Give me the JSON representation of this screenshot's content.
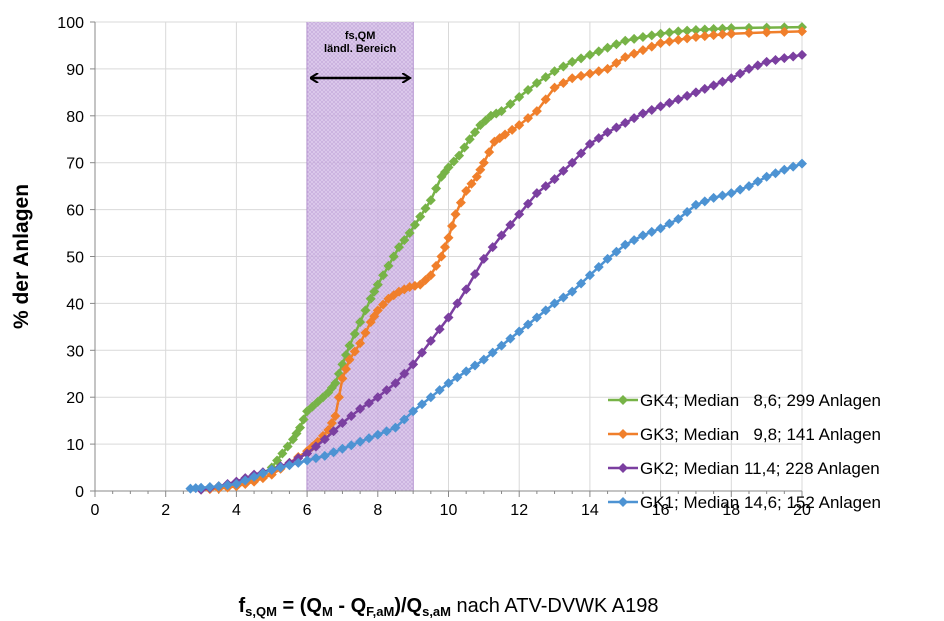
{
  "chart_data": {
    "type": "line",
    "xlim": [
      0,
      20
    ],
    "ylim": [
      0,
      100
    ],
    "x_ticks": [
      "0",
      "2",
      "4",
      "6",
      "8",
      "10",
      "12",
      "14",
      "16",
      "18",
      "20"
    ],
    "y_ticks": [
      "0",
      "10",
      "20",
      "30",
      "40",
      "50",
      "60",
      "70",
      "80",
      "90",
      "100"
    ],
    "grid": true,
    "legend_position": "bottom-right",
    "ylabel": "% der Anlagen",
    "xlabel": {
      "f": "f",
      "f_sub": "s,QM",
      "eq": " = (Q",
      "m_sub": "M",
      "minus": " - Q",
      "fam_sub": "F,aM",
      "div": ")/Q",
      "sam_sub": "s,aM",
      "rest": " nach ATV-DVWK A198"
    },
    "band": {
      "x_range": [
        6,
        9
      ],
      "color": "#cdb4e0",
      "label_line1": "fs,QM",
      "label_line2": "ländl. Bereich"
    },
    "series": [
      {
        "name": "GK4; Median   8,6; 299 Anlagen",
        "color": "#77b347",
        "x": [
          3.0,
          3.5,
          4.0,
          4.5,
          5.0,
          5.3,
          5.6,
          5.8,
          6.0,
          6.3,
          6.6,
          6.8,
          7.0,
          7.2,
          7.5,
          7.8,
          8.0,
          8.3,
          8.6,
          8.9,
          9.2,
          9.5,
          9.8,
          10.0,
          10.3,
          10.6,
          10.9,
          11.2,
          11.5,
          12.0,
          12.5,
          13.0,
          13.5,
          14.0,
          14.5,
          15.0,
          15.5,
          16.0,
          16.5,
          17.0,
          17.5,
          18.0,
          19.0,
          20.0
        ],
        "y": [
          0.5,
          1.0,
          1.5,
          2.5,
          5.0,
          8.0,
          11.0,
          13.5,
          17.0,
          19.0,
          21.0,
          23.0,
          27.0,
          31.0,
          36.0,
          41.0,
          44.0,
          48.0,
          52.0,
          55.0,
          58.5,
          62.0,
          67.0,
          69.0,
          71.5,
          75.0,
          78.0,
          80.0,
          81.0,
          84.0,
          87.0,
          89.5,
          91.5,
          93.0,
          94.5,
          96.0,
          96.8,
          97.5,
          98.0,
          98.3,
          98.5,
          98.7,
          98.8,
          98.9
        ]
      },
      {
        "name": "GK3; Median   9,8; 141 Anlagen",
        "color": "#f07f2b",
        "x": [
          3.0,
          3.5,
          4.0,
          4.5,
          5.0,
          5.5,
          6.0,
          6.3,
          6.6,
          6.8,
          7.0,
          7.2,
          7.5,
          7.8,
          8.0,
          8.3,
          8.6,
          8.9,
          9.2,
          9.5,
          9.8,
          10.0,
          10.2,
          10.5,
          10.8,
          11.0,
          11.3,
          11.6,
          12.0,
          12.5,
          13.0,
          13.5,
          14.0,
          14.5,
          15.0,
          15.5,
          16.0,
          16.5,
          17.0,
          17.5,
          18.0,
          19.0,
          20.0
        ],
        "y": [
          0.3,
          0.5,
          1.0,
          2.0,
          3.5,
          6.0,
          8.5,
          10.5,
          13.0,
          16.0,
          24.0,
          28.0,
          31.5,
          36.0,
          38.5,
          41.0,
          42.5,
          43.5,
          44.0,
          46.0,
          50.0,
          54.0,
          59.0,
          64.0,
          67.0,
          70.0,
          74.5,
          76.0,
          78.0,
          81.0,
          86.0,
          88.0,
          89.0,
          90.0,
          92.5,
          94.0,
          95.5,
          96.2,
          96.8,
          97.2,
          97.5,
          97.8,
          98.0
        ]
      },
      {
        "name": "GK2; Median 11,4; 228 Anlagen",
        "color": "#7b3fa0",
        "x": [
          3.0,
          3.5,
          4.0,
          4.5,
          5.0,
          5.5,
          6.0,
          6.5,
          7.0,
          7.5,
          8.0,
          8.5,
          9.0,
          9.5,
          10.0,
          10.5,
          11.0,
          11.5,
          12.0,
          12.5,
          13.0,
          13.5,
          14.0,
          14.5,
          15.0,
          15.5,
          16.0,
          16.5,
          17.0,
          17.5,
          18.0,
          18.5,
          19.0,
          19.5,
          20.0
        ],
        "y": [
          0.3,
          1.0,
          2.0,
          3.5,
          4.5,
          6.0,
          8.0,
          11.0,
          14.5,
          17.5,
          20.0,
          23.0,
          27.0,
          32.0,
          37.0,
          43.0,
          49.5,
          54.5,
          59.0,
          63.5,
          66.5,
          70.0,
          74.0,
          76.5,
          78.5,
          80.5,
          82.0,
          83.5,
          85.0,
          86.5,
          88.0,
          90.0,
          91.5,
          92.3,
          93.0
        ]
      },
      {
        "name": "GK1; Median 14,6; 152 Anlagen",
        "color": "#4d93d3",
        "x": [
          2.7,
          3.0,
          3.5,
          4.0,
          4.5,
          5.0,
          5.5,
          6.0,
          6.5,
          7.0,
          7.5,
          8.0,
          8.5,
          9.0,
          9.5,
          10.0,
          10.5,
          11.0,
          11.5,
          12.0,
          12.5,
          13.0,
          13.5,
          14.0,
          14.5,
          15.0,
          15.5,
          16.0,
          16.5,
          17.0,
          17.5,
          18.0,
          18.5,
          19.0,
          19.5,
          20.0
        ],
        "y": [
          0.5,
          0.7,
          1.0,
          1.5,
          3.0,
          4.5,
          5.5,
          6.5,
          7.5,
          9.0,
          10.5,
          12.0,
          13.5,
          17.0,
          20.0,
          23.0,
          25.5,
          28.0,
          31.0,
          34.0,
          37.0,
          40.0,
          42.5,
          46.0,
          49.5,
          52.5,
          54.5,
          56.0,
          58.0,
          61.0,
          62.5,
          63.5,
          65.0,
          67.0,
          68.5,
          69.8
        ]
      }
    ]
  }
}
